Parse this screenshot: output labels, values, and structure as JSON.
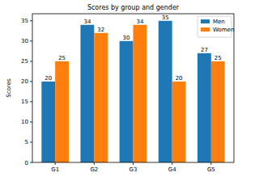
{
  "chart_data": {
    "type": "bar",
    "title": "Scores by group and gender",
    "y_label": "Scores",
    "categories": [
      "G1",
      "G2",
      "G3",
      "G4",
      "G5"
    ],
    "series": [
      {
        "name": "Men",
        "color": "#1f77b4",
        "values": [
          20,
          34,
          30,
          35,
          27
        ]
      },
      {
        "name": "Women",
        "color": "#ff7f0e",
        "values": [
          25,
          32,
          34,
          20,
          25
        ]
      }
    ],
    "ylim": [
      0,
      36.75
    ],
    "yticks": [
      0,
      5,
      10,
      15,
      20,
      25,
      30,
      35
    ],
    "legend": "upper right",
    "data_labels": true,
    "grid": false
  }
}
